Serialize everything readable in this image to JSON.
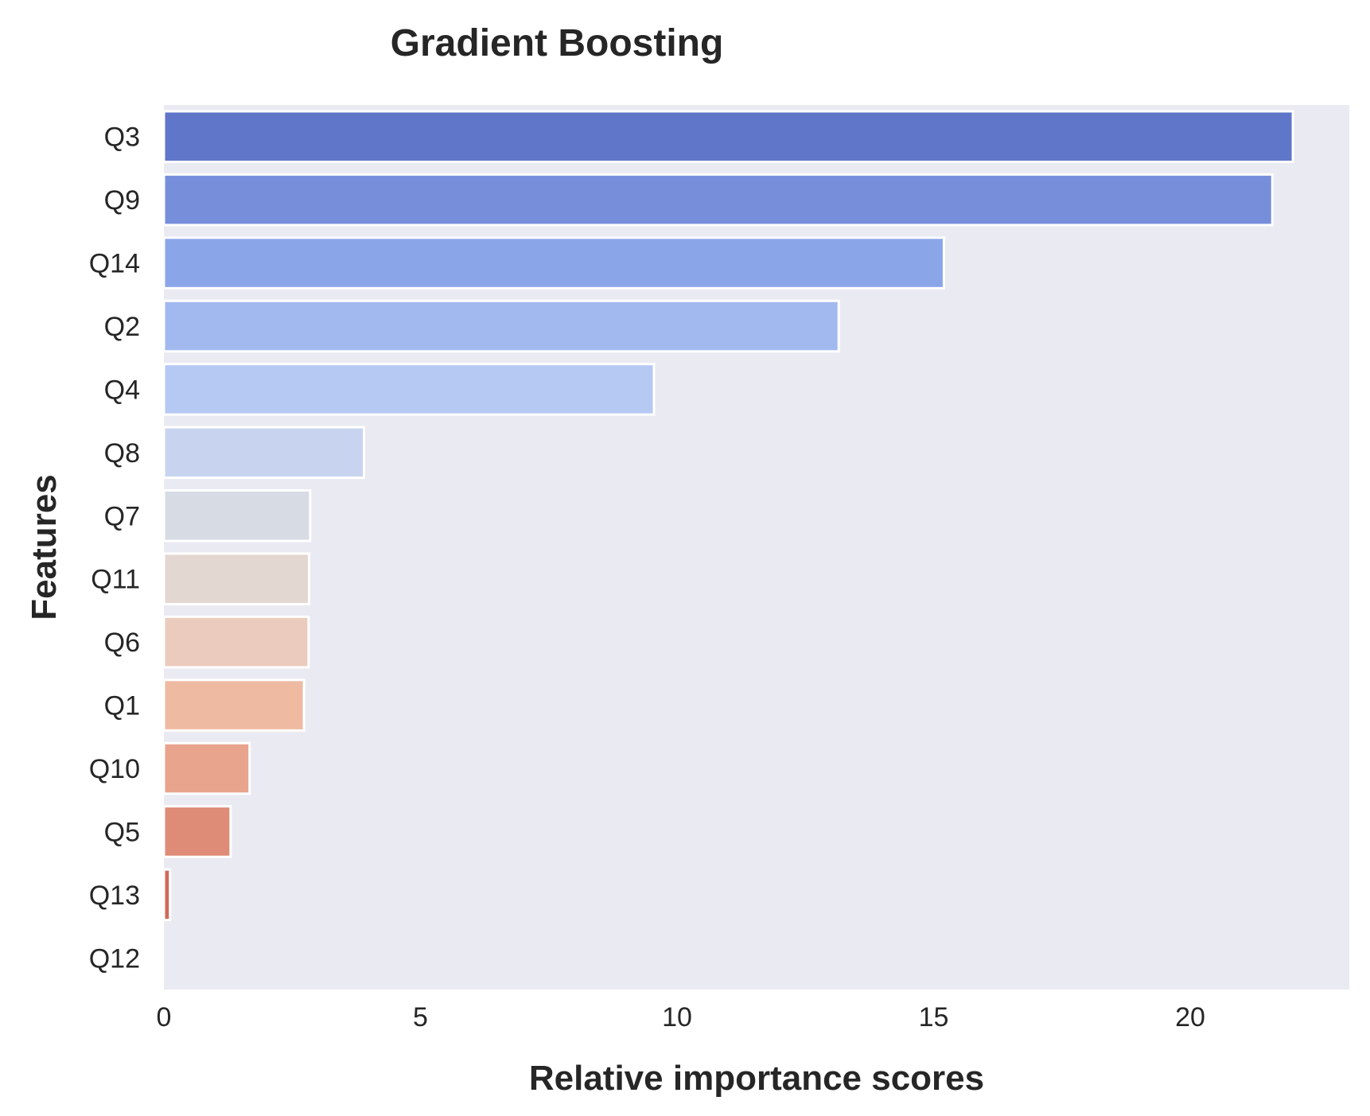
{
  "chart_data": {
    "type": "bar",
    "orientation": "horizontal",
    "title": "Gradient Boosting",
    "xlabel": "Relative importance scores",
    "ylabel": "Features",
    "categories": [
      "Q3",
      "Q9",
      "Q14",
      "Q2",
      "Q4",
      "Q8",
      "Q7",
      "Q11",
      "Q6",
      "Q1",
      "Q10",
      "Q5",
      "Q13",
      "Q12"
    ],
    "values": [
      22.0,
      21.6,
      15.2,
      13.15,
      9.55,
      3.9,
      2.85,
      2.83,
      2.82,
      2.73,
      1.67,
      1.3,
      0.12,
      0.0
    ],
    "colors": [
      "#6076c8",
      "#778fdb",
      "#8ba6e8",
      "#a2b9f0",
      "#b6c9f3",
      "#c8d4ef",
      "#d6dbe4",
      "#e3d7d1",
      "#ebcbbd",
      "#eebaa2",
      "#e8a48d",
      "#de8c77",
      "#d06a5a",
      "#c44e45"
    ],
    "xlim": [
      0,
      23.1
    ],
    "xticks": [
      0,
      5,
      10,
      15,
      20
    ],
    "grid": false,
    "background": "#eaeaf2"
  }
}
